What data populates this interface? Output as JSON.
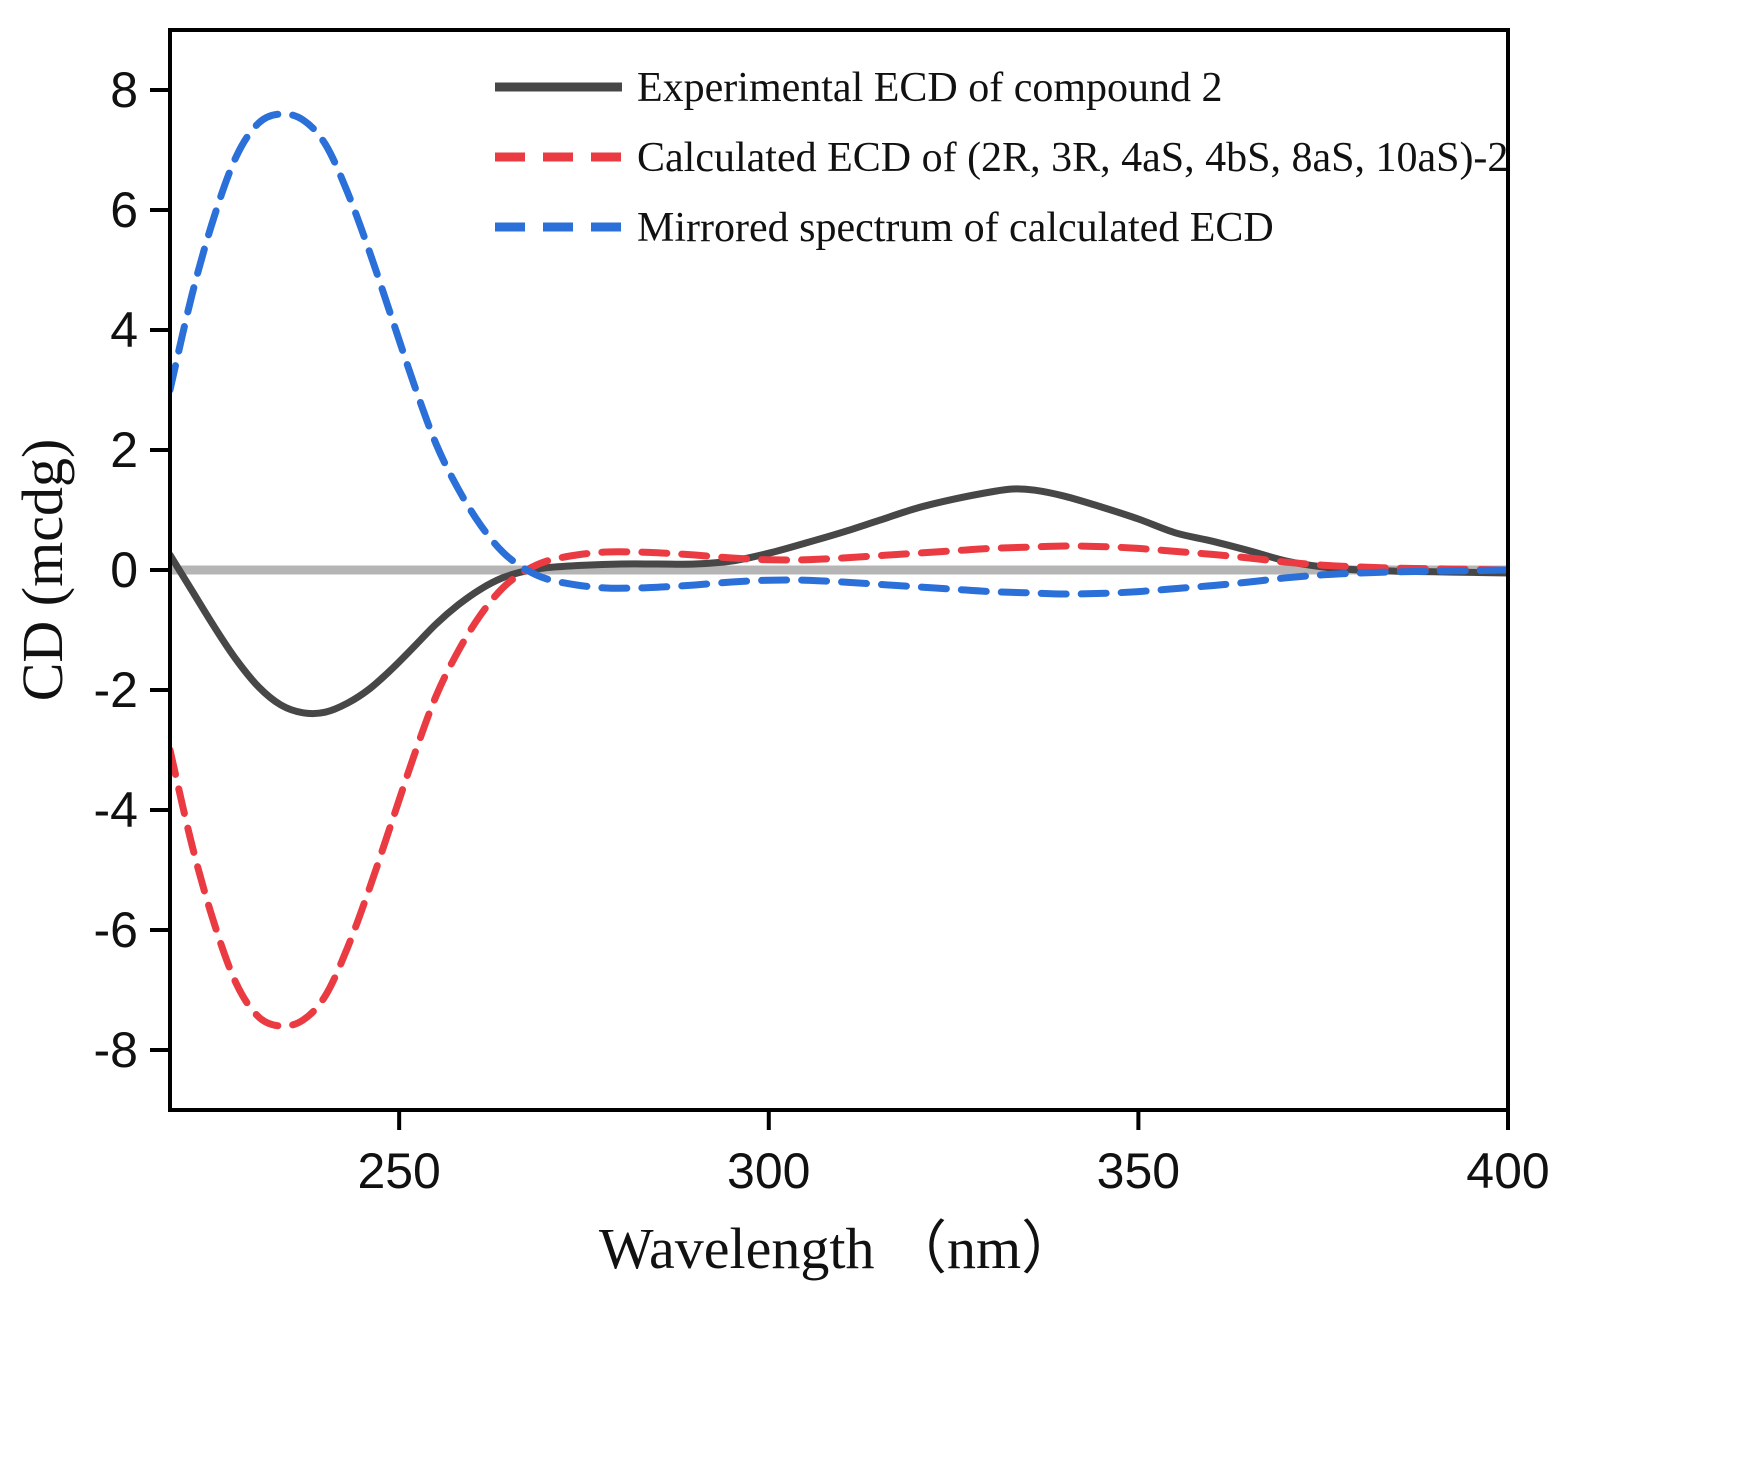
{
  "chart_data": {
    "type": "line",
    "title": "",
    "xlabel": "Wavelength （nm）",
    "ylabel": "CD (mcdg)",
    "xlim": [
      219,
      400
    ],
    "ylim": [
      -9,
      9
    ],
    "xticks": [
      250,
      300,
      350,
      400
    ],
    "yticks": [
      -8,
      -6,
      -4,
      -2,
      0,
      2,
      4,
      6,
      8
    ],
    "grid": false,
    "legend_position": "top-center",
    "frame_color": "#000000",
    "zero_line_color": "#b5b5b5",
    "series": [
      {
        "name": "Experimental ECD of compound 2",
        "color": "#474747",
        "style": "solid",
        "x": [
          219,
          222,
          225,
          228,
          231,
          234,
          237,
          240,
          243,
          246,
          249,
          252,
          255,
          258,
          261,
          264,
          267,
          270,
          275,
          280,
          285,
          290,
          295,
          300,
          305,
          310,
          315,
          320,
          325,
          330,
          333,
          336,
          340,
          345,
          350,
          355,
          360,
          365,
          370,
          375,
          380,
          385,
          390,
          395,
          400
        ],
        "y": [
          0.25,
          -0.35,
          -0.95,
          -1.5,
          -1.95,
          -2.25,
          -2.38,
          -2.37,
          -2.22,
          -1.98,
          -1.65,
          -1.28,
          -0.9,
          -0.58,
          -0.32,
          -0.13,
          -0.02,
          0.04,
          0.08,
          0.1,
          0.1,
          0.1,
          0.15,
          0.28,
          0.45,
          0.63,
          0.83,
          1.03,
          1.18,
          1.3,
          1.35,
          1.33,
          1.23,
          1.05,
          0.85,
          0.62,
          0.48,
          0.32,
          0.15,
          0.05,
          0.0,
          -0.02,
          -0.03,
          -0.04,
          -0.05
        ]
      },
      {
        "name": "Calculated ECD of (2R, 3R, 4aS, 4bS, 8aS, 10aS)-2",
        "color": "#ea3b42",
        "style": "dashed",
        "x": [
          219,
          222,
          225,
          228,
          231,
          234,
          237,
          240,
          243,
          246,
          249,
          252,
          255,
          258,
          261,
          264,
          267,
          270,
          274,
          278,
          282,
          286,
          290,
          295,
          300,
          305,
          310,
          315,
          320,
          325,
          330,
          335,
          340,
          345,
          350,
          355,
          360,
          365,
          370,
          375,
          380,
          385,
          390,
          395,
          400
        ],
        "y": [
          -3.0,
          -4.6,
          -5.9,
          -6.9,
          -7.45,
          -7.6,
          -7.5,
          -7.1,
          -6.3,
          -5.3,
          -4.2,
          -3.1,
          -2.1,
          -1.35,
          -0.75,
          -0.3,
          -0.02,
          0.15,
          0.25,
          0.3,
          0.3,
          0.28,
          0.25,
          0.2,
          0.17,
          0.17,
          0.2,
          0.24,
          0.28,
          0.32,
          0.36,
          0.38,
          0.4,
          0.39,
          0.36,
          0.31,
          0.26,
          0.2,
          0.13,
          0.08,
          0.05,
          0.03,
          0.02,
          0.01,
          0.0
        ]
      },
      {
        "name": "Mirrored spectrum of calculated ECD",
        "color": "#2b6fd9",
        "style": "dashed",
        "x": [
          219,
          222,
          225,
          228,
          231,
          234,
          237,
          240,
          243,
          246,
          249,
          252,
          255,
          258,
          261,
          264,
          267,
          270,
          274,
          278,
          282,
          286,
          290,
          295,
          300,
          305,
          310,
          315,
          320,
          325,
          330,
          335,
          340,
          345,
          350,
          355,
          360,
          365,
          370,
          375,
          380,
          385,
          390,
          395,
          400
        ],
        "y": [
          3.0,
          4.6,
          5.9,
          6.9,
          7.45,
          7.6,
          7.5,
          7.1,
          6.3,
          5.3,
          4.2,
          3.1,
          2.1,
          1.35,
          0.75,
          0.3,
          0.02,
          -0.15,
          -0.25,
          -0.3,
          -0.3,
          -0.28,
          -0.25,
          -0.2,
          -0.17,
          -0.17,
          -0.2,
          -0.24,
          -0.28,
          -0.32,
          -0.36,
          -0.38,
          -0.4,
          -0.39,
          -0.36,
          -0.31,
          -0.26,
          -0.2,
          -0.13,
          -0.08,
          -0.05,
          -0.03,
          -0.02,
          -0.01,
          0.0
        ]
      }
    ]
  }
}
